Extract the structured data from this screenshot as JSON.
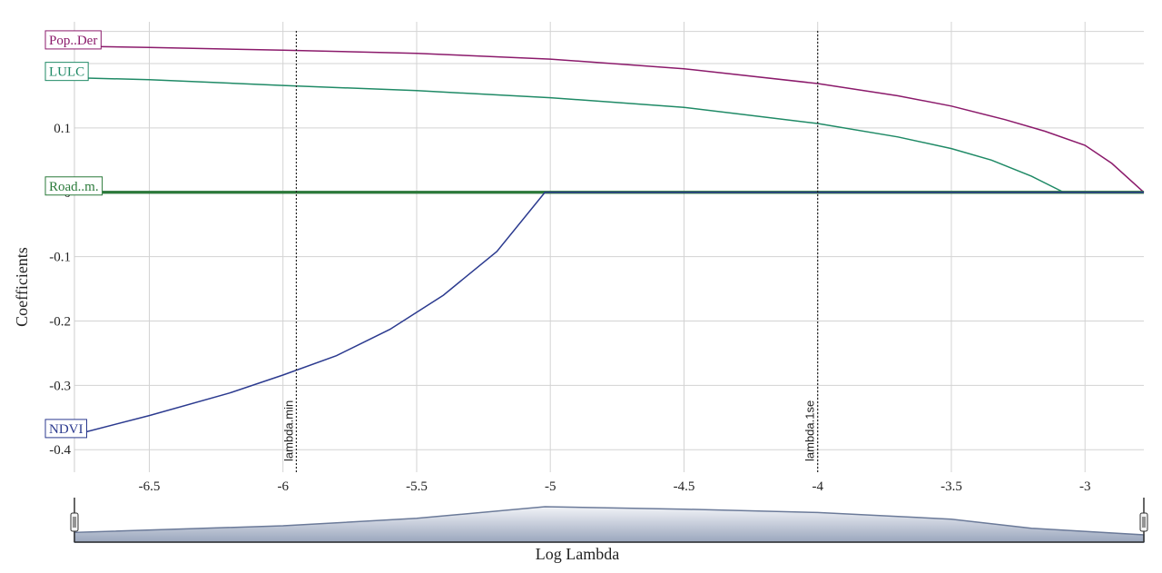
{
  "chart_data": {
    "type": "line",
    "xlabel": "Log Lambda",
    "ylabel": "Coefficients",
    "xlim": [
      -6.78,
      -2.78
    ],
    "ylim": [
      -0.435,
      0.265
    ],
    "x_ticks": [
      -6.5,
      -6,
      -5.5,
      -5,
      -4.5,
      -4,
      -3.5,
      -3
    ],
    "x_tick_labels": [
      "-6.5",
      "-6",
      "-5.5",
      "-5",
      "-4.5",
      "-4",
      "-3.5",
      "-3"
    ],
    "y_ticks": [
      -0.4,
      -0.3,
      -0.2,
      -0.1,
      0,
      0.1
    ],
    "y_tick_labels": [
      "-0.4",
      "-0.3",
      "-0.2",
      "-0.1",
      "0",
      "0.1"
    ],
    "grid": true,
    "series": [
      {
        "name": "Pop..Der",
        "color": "#8b1a6b",
        "points": [
          [
            -6.78,
            0.227
          ],
          [
            -6.5,
            0.225
          ],
          [
            -6.0,
            0.221
          ],
          [
            -5.5,
            0.216
          ],
          [
            -5.0,
            0.207
          ],
          [
            -4.5,
            0.192
          ],
          [
            -4.0,
            0.169
          ],
          [
            -3.7,
            0.15
          ],
          [
            -3.5,
            0.134
          ],
          [
            -3.3,
            0.113
          ],
          [
            -3.15,
            0.095
          ],
          [
            -3.0,
            0.073
          ],
          [
            -2.9,
            0.045
          ],
          [
            -2.78,
            0.0
          ]
        ]
      },
      {
        "name": "LULC",
        "color": "#1f8a66",
        "points": [
          [
            -6.78,
            0.178
          ],
          [
            -6.5,
            0.175
          ],
          [
            -6.0,
            0.166
          ],
          [
            -5.5,
            0.158
          ],
          [
            -5.0,
            0.147
          ],
          [
            -4.5,
            0.132
          ],
          [
            -4.0,
            0.107
          ],
          [
            -3.7,
            0.086
          ],
          [
            -3.5,
            0.068
          ],
          [
            -3.35,
            0.05
          ],
          [
            -3.2,
            0.025
          ],
          [
            -3.08,
            0.0
          ],
          [
            -2.78,
            0.0
          ]
        ]
      },
      {
        "name": "Road..m.",
        "color": "#2a7a3a",
        "points": [
          [
            -6.78,
            0.0
          ],
          [
            -2.78,
            0.0
          ]
        ]
      },
      {
        "name": "NDVI",
        "color": "#2b3a8f",
        "points": [
          [
            -6.78,
            -0.377
          ],
          [
            -6.5,
            -0.347
          ],
          [
            -6.2,
            -0.312
          ],
          [
            -6.0,
            -0.284
          ],
          [
            -5.8,
            -0.254
          ],
          [
            -5.6,
            -0.213
          ],
          [
            -5.4,
            -0.16
          ],
          [
            -5.2,
            -0.092
          ],
          [
            -5.02,
            0.0
          ],
          [
            -2.78,
            0.0
          ]
        ]
      }
    ],
    "vlines": [
      {
        "x": -5.95,
        "label": "lambda.min"
      },
      {
        "x": -4.0,
        "label": "lambda.1se"
      }
    ],
    "range_slider": {
      "points": [
        [
          -6.78,
          -0.413
        ],
        [
          -6.0,
          -0.405
        ],
        [
          -5.5,
          -0.396
        ],
        [
          -5.02,
          -0.382
        ],
        [
          -4.5,
          -0.385
        ],
        [
          -4.0,
          -0.389
        ],
        [
          -3.5,
          -0.397
        ],
        [
          -3.2,
          -0.408
        ],
        [
          -2.78,
          -0.416
        ]
      ]
    }
  }
}
